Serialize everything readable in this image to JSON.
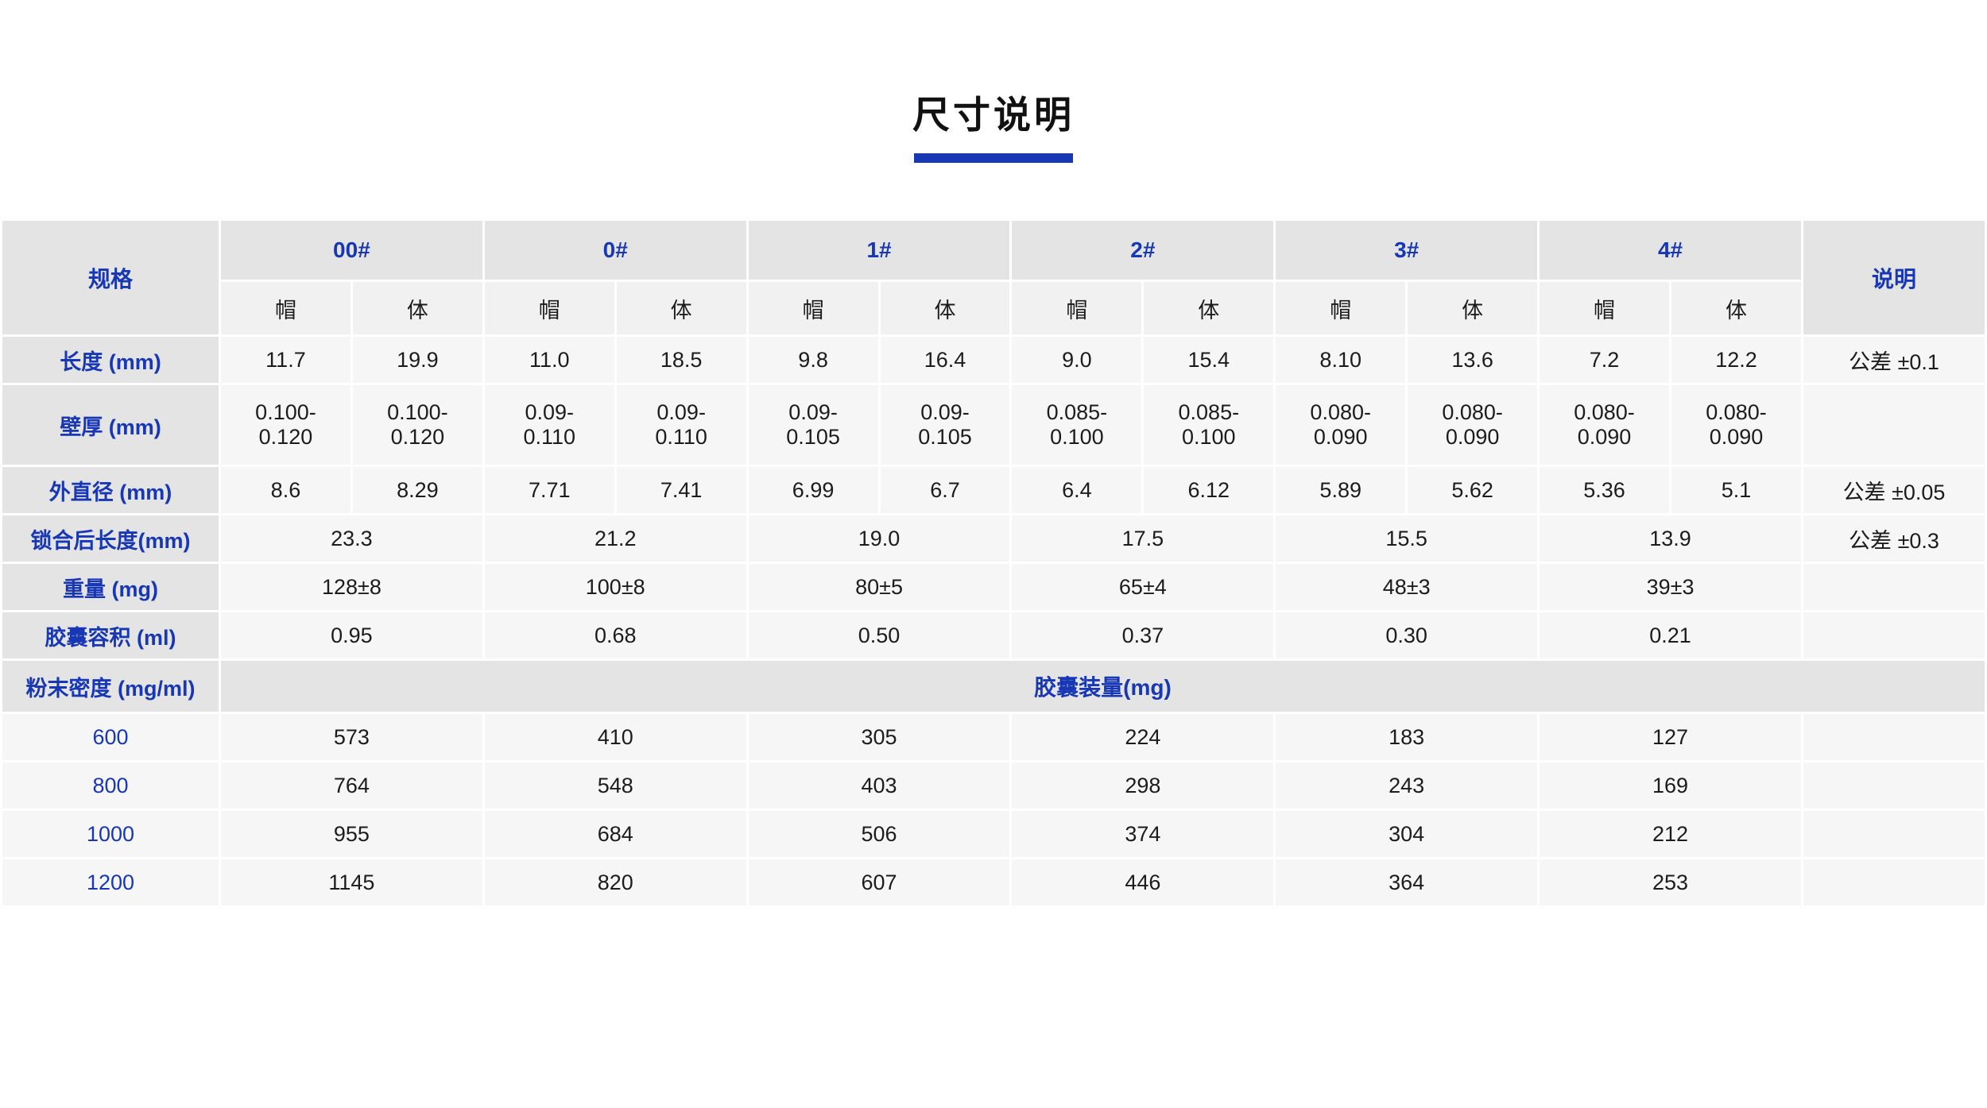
{
  "page": {
    "title": "尺寸说明"
  },
  "colors": {
    "accent_blue": "#1837b4",
    "header_gray": "#e4e4e4",
    "cell_gray": "#f6f6f6",
    "title_black": "#111111"
  },
  "table": {
    "spec_header": "规格",
    "note_header": "说明",
    "sizes": [
      "00#",
      "0#",
      "1#",
      "2#",
      "3#",
      "4#"
    ],
    "cap_label": "帽",
    "body_label": "体",
    "rows_split": [
      {
        "label": "长度 (mm)",
        "values": [
          "11.7",
          "19.9",
          "11.0",
          "18.5",
          "9.8",
          "16.4",
          "9.0",
          "15.4",
          "8.10",
          "13.6",
          "7.2",
          "12.2"
        ],
        "note": "公差 ±0.1"
      },
      {
        "label": "壁厚 (mm)",
        "values": [
          "0.100-\n0.120",
          "0.100-\n0.120",
          "0.09-\n0.110",
          "0.09-\n0.110",
          "0.09-\n0.105",
          "0.09-\n0.105",
          "0.085-\n0.100",
          "0.085-\n0.100",
          "0.080-\n0.090",
          "0.080-\n0.090",
          "0.080-\n0.090",
          "0.080-\n0.090"
        ],
        "note": ""
      },
      {
        "label": "外直径 (mm)",
        "values": [
          "8.6",
          "8.29",
          "7.71",
          "7.41",
          "6.99",
          "6.7",
          "6.4",
          "6.12",
          "5.89",
          "5.62",
          "5.36",
          "5.1"
        ],
        "note": "公差 ±0.05"
      }
    ],
    "rows_merged": [
      {
        "label": "锁合后长度(mm)",
        "values": [
          "23.3",
          "21.2",
          "19.0",
          "17.5",
          "15.5",
          "13.9"
        ],
        "note": "公差 ±0.3"
      },
      {
        "label": "重量 (mg)",
        "values": [
          "128±8",
          "100±8",
          "80±5",
          "65±4",
          "48±3",
          "39±3"
        ],
        "note": ""
      },
      {
        "label": "胶囊容积 (ml)",
        "values": [
          "0.95",
          "0.68",
          "0.50",
          "0.37",
          "0.30",
          "0.21"
        ],
        "note": ""
      }
    ],
    "density_row": {
      "label": "粉末密度 (mg/ml)",
      "band": "胶囊装量(mg)"
    },
    "fill_rows": [
      {
        "label": "600",
        "values": [
          "573",
          "410",
          "305",
          "224",
          "183",
          "127"
        ],
        "note": ""
      },
      {
        "label": "800",
        "values": [
          "764",
          "548",
          "403",
          "298",
          "243",
          "169"
        ],
        "note": ""
      },
      {
        "label": "1000",
        "values": [
          "955",
          "684",
          "506",
          "374",
          "304",
          "212"
        ],
        "note": ""
      },
      {
        "label": "1200",
        "values": [
          "1145",
          "820",
          "607",
          "446",
          "364",
          "253"
        ],
        "note": ""
      }
    ]
  }
}
